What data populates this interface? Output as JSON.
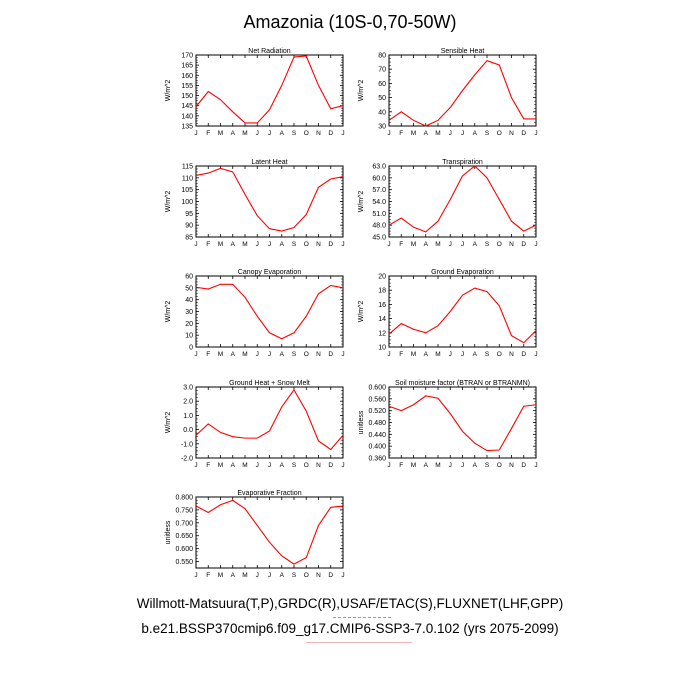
{
  "page": {
    "title": "Amazonia (10S-0,70-50W)",
    "footer_line1": "Willmott-Matsuura(T,P),GRDC(R),USAF/ETAC(S),FLUXNET(LHF,GPP)",
    "footer_line2": "b.e21.BSSP370cmip6.f09_g17.CMIP6-SSP3-7.0.102 (yrs 2075-2099)"
  },
  "style": {
    "line_color": "#ff0000"
  },
  "chart_data": [
    {
      "id": "net-radiation",
      "type": "line",
      "title": "Net Radiation",
      "ylabel": "W/m^2",
      "categories": [
        "J",
        "F",
        "M",
        "A",
        "M",
        "J",
        "J",
        "A",
        "S",
        "O",
        "N",
        "D",
        "J"
      ],
      "values": [
        144.5,
        152,
        148,
        142,
        136.5,
        136.5,
        143,
        155,
        169,
        169.5,
        155,
        143.5,
        145
      ],
      "ylim": [
        135,
        170
      ],
      "yticks": [
        "135",
        "140",
        "145",
        "150",
        "155",
        "160",
        "165",
        "170"
      ],
      "yticks_values": [
        135,
        140,
        145,
        150,
        155,
        160,
        165,
        170
      ]
    },
    {
      "id": "sensible-heat",
      "type": "line",
      "title": "Sensible Heat",
      "ylabel": "W/m^2",
      "categories": [
        "J",
        "F",
        "M",
        "A",
        "M",
        "J",
        "J",
        "A",
        "S",
        "O",
        "N",
        "D",
        "J"
      ],
      "values": [
        34,
        40,
        34,
        30,
        34,
        43,
        55,
        66,
        76,
        73,
        50,
        35,
        35
      ],
      "ylim": [
        30,
        80
      ],
      "yticks": [
        "30",
        "40",
        "50",
        "60",
        "70",
        "80"
      ],
      "yticks_values": [
        30,
        40,
        50,
        60,
        70,
        80
      ]
    },
    {
      "id": "latent-heat",
      "type": "line",
      "title": "Latent Heat",
      "ylabel": "W/m^2",
      "categories": [
        "J",
        "F",
        "M",
        "A",
        "M",
        "J",
        "J",
        "A",
        "S",
        "O",
        "N",
        "D",
        "J"
      ],
      "values": [
        111,
        112,
        114,
        112.5,
        103,
        94,
        88.5,
        87.5,
        89,
        94.5,
        106,
        109.5,
        110.5
      ],
      "ylim": [
        85,
        115
      ],
      "yticks": [
        "85",
        "90",
        "95",
        "100",
        "105",
        "110",
        "115"
      ],
      "yticks_values": [
        85,
        90,
        95,
        100,
        105,
        110,
        115
      ]
    },
    {
      "id": "transpiration",
      "type": "line",
      "title": "Transpiration",
      "ylabel": "W/m^2",
      "categories": [
        "J",
        "F",
        "M",
        "A",
        "M",
        "J",
        "J",
        "A",
        "S",
        "O",
        "N",
        "D",
        "J"
      ],
      "values": [
        48,
        49.8,
        47.5,
        46.3,
        49,
        54.5,
        60.5,
        63,
        60,
        54.5,
        49,
        46.5,
        48
      ],
      "ylim": [
        45,
        63
      ],
      "yticks": [
        "45.0",
        "48.0",
        "51.0",
        "54.0",
        "57.0",
        "60.0",
        "63.0"
      ],
      "yticks_values": [
        45,
        48,
        51,
        54,
        57,
        60,
        63
      ]
    },
    {
      "id": "canopy-evaporation",
      "type": "line",
      "title": "Canopy Evaporation",
      "ylabel": "W/m^2",
      "categories": [
        "J",
        "F",
        "M",
        "A",
        "M",
        "J",
        "J",
        "A",
        "S",
        "O",
        "N",
        "D",
        "J"
      ],
      "values": [
        50.5,
        49,
        53,
        53,
        42,
        26,
        12,
        7,
        12,
        26,
        45,
        52,
        50
      ],
      "ylim": [
        0,
        60
      ],
      "yticks": [
        "0",
        "10",
        "20",
        "30",
        "40",
        "50",
        "60"
      ],
      "yticks_values": [
        0,
        10,
        20,
        30,
        40,
        50,
        60
      ]
    },
    {
      "id": "ground-evaporation",
      "type": "line",
      "title": "Ground Evaporation",
      "ylabel": "W/m^2",
      "categories": [
        "J",
        "F",
        "M",
        "A",
        "M",
        "J",
        "J",
        "A",
        "S",
        "O",
        "N",
        "D",
        "J"
      ],
      "values": [
        11.8,
        13.3,
        12.5,
        12,
        13,
        15,
        17.3,
        18.3,
        17.8,
        15.8,
        11.6,
        10.6,
        12.3
      ],
      "ylim": [
        10,
        20
      ],
      "yticks": [
        "10",
        "12",
        "14",
        "16",
        "18",
        "20"
      ],
      "yticks_values": [
        10,
        12,
        14,
        16,
        18,
        20
      ]
    },
    {
      "id": "ground-heat-snow-melt",
      "type": "line",
      "title": "Ground Heat + Snow Melt",
      "ylabel": "W/m^2",
      "categories": [
        "J",
        "F",
        "M",
        "A",
        "M",
        "J",
        "J",
        "A",
        "S",
        "O",
        "N",
        "D",
        "J"
      ],
      "values": [
        -0.4,
        0.4,
        -0.2,
        -0.5,
        -0.6,
        -0.6,
        -0.1,
        1.6,
        2.8,
        1.3,
        -0.8,
        -1.4,
        -0.4
      ],
      "ylim": [
        -2,
        3
      ],
      "yticks": [
        "-2.0",
        "-1.0",
        "0.0",
        "1.0",
        "2.0",
        "3.0"
      ],
      "yticks_values": [
        -2,
        -1,
        0,
        1,
        2,
        3
      ]
    },
    {
      "id": "soil-moisture-factor",
      "type": "line",
      "title": "Soil moisture factor (BTRAN or BTRANMN)",
      "ylabel": "unitless",
      "categories": [
        "J",
        "F",
        "M",
        "A",
        "M",
        "J",
        "J",
        "A",
        "S",
        "O",
        "N",
        "D",
        "J"
      ],
      "values": [
        0.535,
        0.52,
        0.54,
        0.57,
        0.562,
        0.51,
        0.45,
        0.41,
        0.385,
        0.387,
        0.46,
        0.535,
        0.54
      ],
      "ylim": [
        0.36,
        0.6
      ],
      "yticks": [
        "0.360",
        "0.400",
        "0.440",
        "0.480",
        "0.520",
        "0.560",
        "0.600"
      ],
      "yticks_values": [
        0.36,
        0.4,
        0.44,
        0.48,
        0.52,
        0.56,
        0.6
      ]
    },
    {
      "id": "evaporative-fraction",
      "type": "line",
      "title": "Evaporative Fraction",
      "ylabel": "unitless",
      "categories": [
        "J",
        "F",
        "M",
        "A",
        "M",
        "J",
        "J",
        "A",
        "S",
        "O",
        "N",
        "D",
        "J"
      ],
      "values": [
        0.765,
        0.74,
        0.77,
        0.787,
        0.755,
        0.69,
        0.625,
        0.572,
        0.54,
        0.565,
        0.69,
        0.76,
        0.765
      ],
      "ylim": [
        0.525,
        0.8
      ],
      "yticks": [
        "0.550",
        "0.600",
        "0.650",
        "0.700",
        "0.750",
        "0.800"
      ],
      "yticks_values": [
        0.55,
        0.6,
        0.65,
        0.7,
        0.75,
        0.8
      ]
    }
  ]
}
